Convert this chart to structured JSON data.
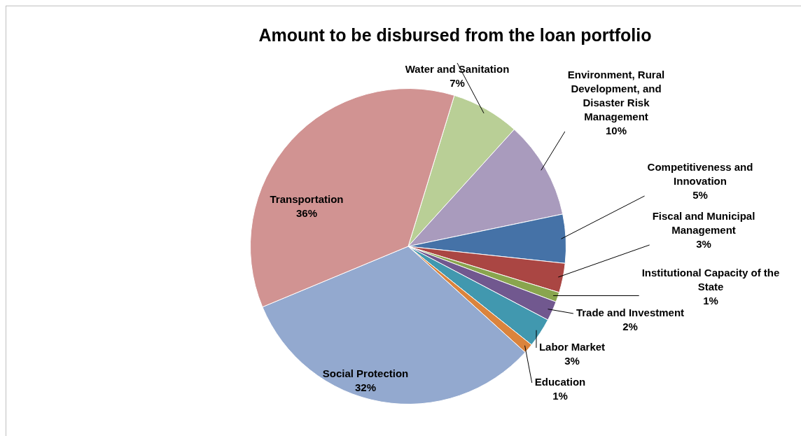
{
  "chart_data": {
    "type": "pie",
    "title": "Amount to be disbursed from the loan portfolio",
    "categories": [
      "Water and Sanitation",
      "Environment, Rural Development, and Disaster Risk Management",
      "Competitiveness and Innovation",
      "Fiscal and Municipal Management",
      "Institutional Capacity of the State",
      "Trade and Investment",
      "Labor Market",
      "Education",
      "Social Protection",
      "Transportation"
    ],
    "values": [
      7,
      10,
      5,
      3,
      1,
      2,
      3,
      1,
      32,
      36
    ],
    "value_labels": [
      "7%",
      "10%",
      "5%",
      "3%",
      "1%",
      "2%",
      "3%",
      "1%",
      "32%",
      "36%"
    ],
    "colors": [
      "#b9cf96",
      "#a99bbd",
      "#4572a7",
      "#aa4643",
      "#89a54e",
      "#71588f",
      "#4198af",
      "#db843d",
      "#93a9cf",
      "#d19392"
    ],
    "legend": false
  }
}
